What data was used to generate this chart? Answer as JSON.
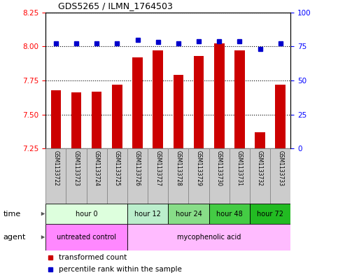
{
  "title": "GDS5265 / ILMN_1764503",
  "samples": [
    "GSM1133722",
    "GSM1133723",
    "GSM1133724",
    "GSM1133725",
    "GSM1133726",
    "GSM1133727",
    "GSM1133728",
    "GSM1133729",
    "GSM1133730",
    "GSM1133731",
    "GSM1133732",
    "GSM1133733"
  ],
  "bar_values": [
    7.68,
    7.66,
    7.67,
    7.72,
    7.92,
    7.97,
    7.79,
    7.93,
    8.02,
    7.97,
    7.37,
    7.72
  ],
  "percentile_values": [
    77,
    77,
    77,
    77,
    80,
    78,
    77,
    79,
    79,
    79,
    73,
    77
  ],
  "ylim_left": [
    7.25,
    8.25
  ],
  "ylim_right": [
    0,
    100
  ],
  "yticks_left": [
    7.25,
    7.5,
    7.75,
    8.0,
    8.25
  ],
  "yticks_right": [
    0,
    25,
    50,
    75,
    100
  ],
  "bar_color": "#cc0000",
  "dot_color": "#0000cc",
  "time_groups": [
    {
      "label": "hour 0",
      "start": 0,
      "end": 4,
      "color": "#ddffdd"
    },
    {
      "label": "hour 12",
      "start": 4,
      "end": 6,
      "color": "#bbeecc"
    },
    {
      "label": "hour 24",
      "start": 6,
      "end": 8,
      "color": "#88dd88"
    },
    {
      "label": "hour 48",
      "start": 8,
      "end": 10,
      "color": "#44cc44"
    },
    {
      "label": "hour 72",
      "start": 10,
      "end": 12,
      "color": "#22bb22"
    }
  ],
  "agent_groups": [
    {
      "label": "untreated control",
      "start": 0,
      "end": 4,
      "color": "#ff88ff"
    },
    {
      "label": "mycophenolic acid",
      "start": 4,
      "end": 12,
      "color": "#ffbbff"
    }
  ],
  "legend_bar_label": "transformed count",
  "legend_dot_label": "percentile rank within the sample"
}
